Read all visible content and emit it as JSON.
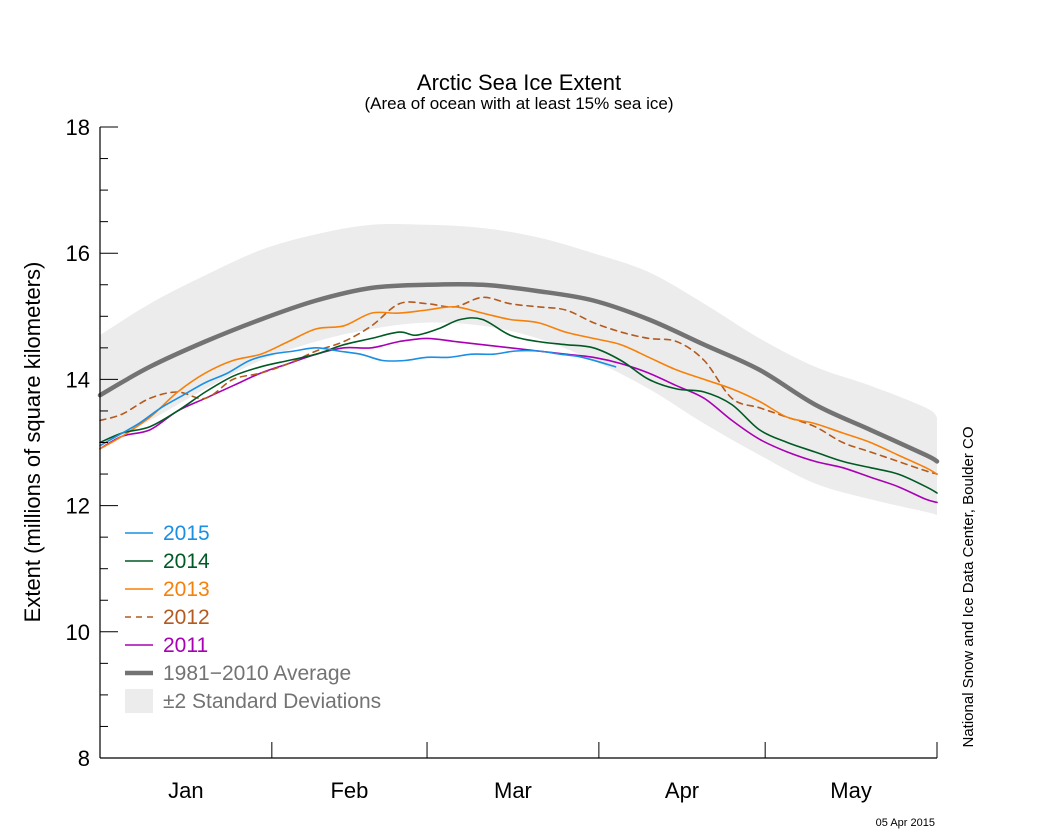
{
  "chart_data": {
    "type": "line",
    "title": "Arctic Sea Ice Extent",
    "subtitle": "(Area of ocean with at least 15% sea ice)",
    "ylabel": "Extent (millions of square kilometers)",
    "xlabel": "",
    "ylim": [
      8,
      18
    ],
    "yticks": [
      "8",
      "10",
      "12",
      "14",
      "16",
      "18"
    ],
    "xlim": [
      1,
      152
    ],
    "month_boundaries": [
      1,
      32,
      60,
      91,
      121,
      152
    ],
    "month_labels": [
      "Jan",
      "Feb",
      "Mar",
      "Apr",
      "May"
    ],
    "credit": "National Snow and Ice Data Center, Boulder CO",
    "date_stamp": "05 Apr 2015",
    "grid": false,
    "legend_position": "bottom-left",
    "band": {
      "name": "±2 Standard Deviations",
      "color": "#ececec",
      "x": [
        1,
        10,
        20,
        30,
        40,
        50,
        60,
        70,
        80,
        90,
        100,
        110,
        120,
        130,
        140,
        150,
        152
      ],
      "upper": [
        14.7,
        15.2,
        15.65,
        16.05,
        16.3,
        16.45,
        16.45,
        16.4,
        16.25,
        16.0,
        15.7,
        15.2,
        14.65,
        14.2,
        13.9,
        13.55,
        13.4
      ],
      "lower": [
        12.95,
        13.35,
        13.85,
        14.3,
        14.6,
        14.8,
        14.9,
        14.85,
        14.65,
        14.3,
        13.85,
        13.3,
        12.8,
        12.35,
        12.1,
        11.9,
        11.85
      ]
    },
    "series": [
      {
        "name": "2015",
        "color": "#1a8fe3",
        "width": 1.6,
        "dash": "",
        "x": [
          1,
          4,
          8,
          12,
          16,
          20,
          24,
          28,
          32,
          36,
          40,
          44,
          48,
          52,
          56,
          60,
          64,
          68,
          72,
          76,
          80,
          84,
          88,
          94
        ],
        "y": [
          12.95,
          13.1,
          13.3,
          13.55,
          13.75,
          13.95,
          14.1,
          14.3,
          14.4,
          14.45,
          14.5,
          14.45,
          14.4,
          14.3,
          14.3,
          14.35,
          14.35,
          14.4,
          14.4,
          14.45,
          14.45,
          14.4,
          14.35,
          14.2
        ]
      },
      {
        "name": "2014",
        "color": "#005a25",
        "width": 1.6,
        "dash": "",
        "x": [
          1,
          5,
          10,
          15,
          20,
          25,
          30,
          35,
          40,
          45,
          50,
          55,
          58,
          62,
          66,
          70,
          75,
          80,
          85,
          90,
          95,
          100,
          105,
          110,
          115,
          120,
          125,
          130,
          135,
          140,
          145,
          150,
          152
        ],
        "y": [
          13.0,
          13.15,
          13.25,
          13.5,
          13.8,
          14.05,
          14.2,
          14.3,
          14.4,
          14.55,
          14.65,
          14.75,
          14.7,
          14.8,
          14.95,
          14.95,
          14.7,
          14.6,
          14.55,
          14.5,
          14.3,
          14.0,
          13.85,
          13.8,
          13.6,
          13.2,
          13.0,
          12.85,
          12.7,
          12.6,
          12.5,
          12.3,
          12.2
        ]
      },
      {
        "name": "2013",
        "color": "#f7800a",
        "width": 1.6,
        "dash": "",
        "x": [
          1,
          5,
          10,
          15,
          20,
          25,
          30,
          35,
          40,
          45,
          50,
          55,
          60,
          65,
          70,
          75,
          80,
          85,
          90,
          95,
          100,
          105,
          110,
          115,
          120,
          125,
          130,
          135,
          140,
          145,
          150,
          152
        ],
        "y": [
          12.9,
          13.1,
          13.4,
          13.8,
          14.1,
          14.3,
          14.4,
          14.6,
          14.8,
          14.85,
          15.05,
          15.05,
          15.1,
          15.15,
          15.05,
          14.95,
          14.9,
          14.75,
          14.65,
          14.55,
          14.35,
          14.15,
          14.0,
          13.85,
          13.65,
          13.4,
          13.3,
          13.15,
          13.0,
          12.8,
          12.6,
          12.5
        ]
      },
      {
        "name": "2012",
        "color": "#b45a1e",
        "width": 1.6,
        "dash": "6,5",
        "x": [
          1,
          5,
          10,
          15,
          20,
          25,
          30,
          35,
          40,
          45,
          50,
          55,
          60,
          65,
          70,
          75,
          80,
          85,
          90,
          95,
          100,
          105,
          110,
          115,
          120,
          125,
          130,
          135,
          140,
          145,
          150,
          152
        ],
        "y": [
          13.35,
          13.45,
          13.7,
          13.8,
          13.7,
          14.0,
          14.1,
          14.25,
          14.45,
          14.6,
          14.85,
          15.2,
          15.2,
          15.15,
          15.3,
          15.2,
          15.15,
          15.1,
          14.9,
          14.75,
          14.65,
          14.6,
          14.3,
          13.7,
          13.55,
          13.4,
          13.25,
          13.0,
          12.85,
          12.7,
          12.55,
          12.5
        ]
      },
      {
        "name": "2011",
        "color": "#a800b4",
        "width": 1.6,
        "dash": "",
        "x": [
          1,
          5,
          10,
          15,
          20,
          25,
          30,
          35,
          40,
          45,
          50,
          55,
          60,
          65,
          70,
          75,
          80,
          85,
          90,
          95,
          100,
          105,
          110,
          115,
          120,
          125,
          130,
          135,
          140,
          145,
          150,
          152
        ],
        "y": [
          12.9,
          13.1,
          13.2,
          13.5,
          13.7,
          13.9,
          14.1,
          14.25,
          14.4,
          14.5,
          14.5,
          14.6,
          14.65,
          14.6,
          14.55,
          14.5,
          14.45,
          14.4,
          14.35,
          14.25,
          14.1,
          13.9,
          13.7,
          13.35,
          13.05,
          12.85,
          12.7,
          12.6,
          12.45,
          12.3,
          12.1,
          12.05
        ]
      },
      {
        "name": "1981−2010 Average",
        "color": "#737373",
        "width": 4.5,
        "dash": "",
        "x": [
          1,
          10,
          20,
          30,
          40,
          50,
          60,
          70,
          80,
          90,
          100,
          110,
          120,
          130,
          140,
          150,
          152
        ],
        "y": [
          13.75,
          14.2,
          14.6,
          14.95,
          15.25,
          15.45,
          15.5,
          15.5,
          15.4,
          15.25,
          14.95,
          14.55,
          14.15,
          13.6,
          13.2,
          12.8,
          12.7
        ]
      }
    ]
  }
}
